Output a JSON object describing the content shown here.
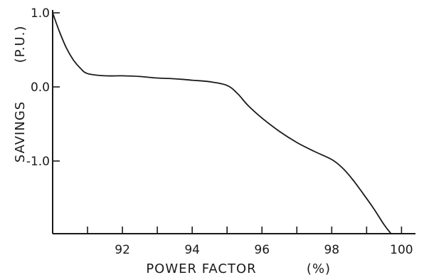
{
  "chart_data": {
    "type": "line",
    "xlabel": "POWER FACTOR",
    "xunit": "(%)",
    "ylabel": "SAVINGS",
    "yunit": "(P.U.)",
    "xlim": [
      90,
      100.4
    ],
    "ylim": [
      -1.95,
      1.0
    ],
    "x_ticks": [
      91,
      92,
      93,
      94,
      95,
      96,
      97,
      98,
      99,
      100
    ],
    "x_tick_labels": [
      {
        "value": 92,
        "label": "92"
      },
      {
        "value": 94,
        "label": "94"
      },
      {
        "value": 96,
        "label": "96"
      },
      {
        "value": 98,
        "label": "98"
      },
      {
        "value": 100,
        "label": "100"
      }
    ],
    "y_tick_labels": [
      {
        "value": 1.0,
        "label": "1.0"
      },
      {
        "value": 0.0,
        "label": "0.0"
      },
      {
        "value": -1.0,
        "label": "-1.0"
      }
    ],
    "grid": false,
    "series": [
      {
        "x": [
          90.0,
          90.2,
          90.4,
          90.6,
          90.8,
          91.0,
          91.5,
          92.0,
          92.5,
          93.0,
          93.5,
          94.0,
          94.5,
          95.0,
          95.3,
          95.6,
          96.0,
          96.5,
          97.0,
          97.5,
          98.0,
          98.3,
          98.6,
          98.9,
          99.2,
          99.5,
          99.7
        ],
        "y": [
          1.0,
          0.74,
          0.52,
          0.36,
          0.25,
          0.18,
          0.15,
          0.15,
          0.14,
          0.12,
          0.11,
          0.09,
          0.07,
          0.02,
          -0.09,
          -0.25,
          -0.42,
          -0.6,
          -0.75,
          -0.87,
          -0.98,
          -1.09,
          -1.25,
          -1.44,
          -1.64,
          -1.86,
          -2.0
        ]
      }
    ]
  }
}
